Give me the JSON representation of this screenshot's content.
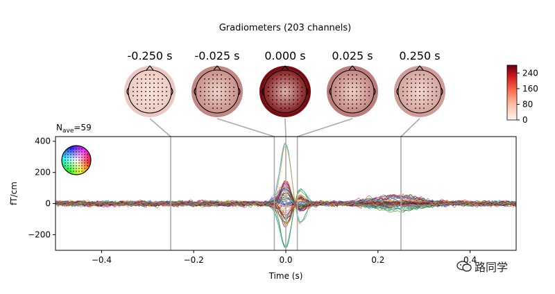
{
  "chart_data": {
    "type": "line",
    "title": "Gradiometers (203 channels)",
    "xlabel": "Time (s)",
    "ylabel": "fT/cm",
    "xlim": [
      -0.5,
      0.5
    ],
    "ylim": [
      -300,
      430
    ],
    "xticks": [
      "−0.4",
      "−0.2",
      "0.0",
      "0.2",
      "0.4"
    ],
    "xtick_values": [
      -0.4,
      -0.2,
      0.0,
      0.2,
      0.4
    ],
    "yticks": [
      "−200",
      "0",
      "200",
      "400"
    ],
    "ytick_values": [
      -200,
      0,
      200,
      400
    ],
    "nave_label": "N",
    "nave_sub": "ave",
    "nave_value": "=59",
    "grid": false,
    "topomap_times": [
      -0.25,
      -0.025,
      0.0,
      0.025,
      0.25
    ],
    "topomap_labels": [
      "-0.250 s",
      "-0.025 s",
      "0.000 s",
      "0.025 s",
      "0.250 s"
    ],
    "topomap_intensity": [
      0.15,
      0.45,
      1.0,
      0.5,
      0.35
    ],
    "colorbar": {
      "ticks": [
        "0",
        "80",
        "160",
        "240"
      ],
      "tick_values": [
        0,
        80,
        160,
        240
      ],
      "range": [
        0,
        280
      ],
      "colors": [
        "#fff5f0",
        "#fcbba1",
        "#fb6a4a",
        "#cb181d",
        "#67000d"
      ]
    },
    "channel_count": 203,
    "peak_main_fT_cm": 390,
    "trough_main_fT_cm": -290,
    "peak_late_fT_cm": 60
  },
  "watermark": {
    "text": "路同学"
  }
}
